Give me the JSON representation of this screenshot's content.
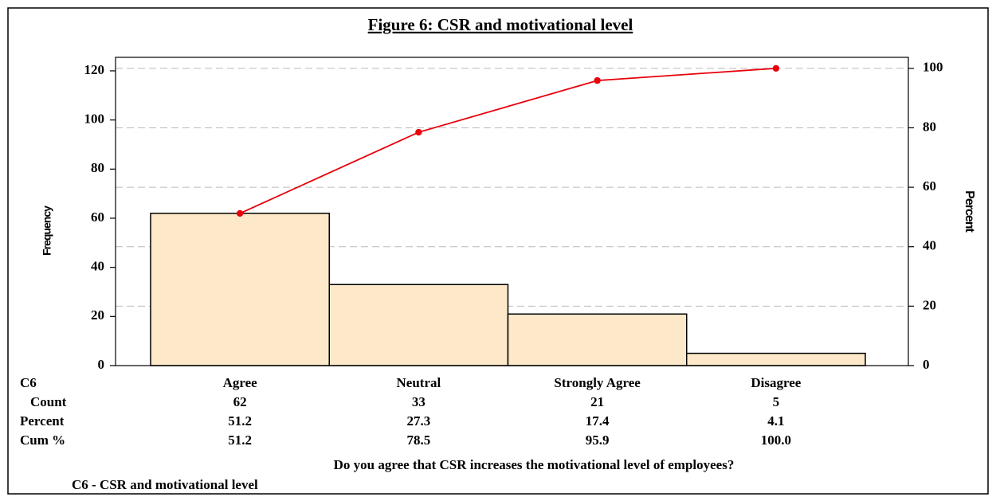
{
  "chart_data": {
    "type": "pareto",
    "title": "Figure 6: CSR and motivational level",
    "ylabel": "Frequency",
    "y2label": "Percent",
    "xlabel": "Do you agree that CSR increases the motivational level of employees?",
    "footnote": "C6 - CSR and motivational level",
    "category_header": "C6",
    "categories": [
      "Agree",
      "Neutral",
      "Strongly Agree",
      "Disagree"
    ],
    "series": [
      {
        "name": "Count",
        "color": "#fde9c9",
        "values": [
          62,
          33,
          21,
          5
        ]
      },
      {
        "name": "Percent",
        "values": [
          51.2,
          27.3,
          17.4,
          4.1
        ]
      },
      {
        "name": "Cum %",
        "color": "#e8000b",
        "axis": "y2",
        "values": [
          51.2,
          78.5,
          95.9,
          100
        ],
        "value_labels": [
          "51.2",
          "78.5",
          "95.9",
          "100.0"
        ]
      }
    ],
    "ylim": [
      0,
      125.5
    ],
    "yticks": [
      0,
      20,
      40,
      60,
      80,
      100,
      120
    ],
    "y2lim": [
      0,
      103.7
    ],
    "y2ticks": [
      0,
      20,
      40,
      60,
      80,
      100
    ],
    "grid": "y2"
  }
}
